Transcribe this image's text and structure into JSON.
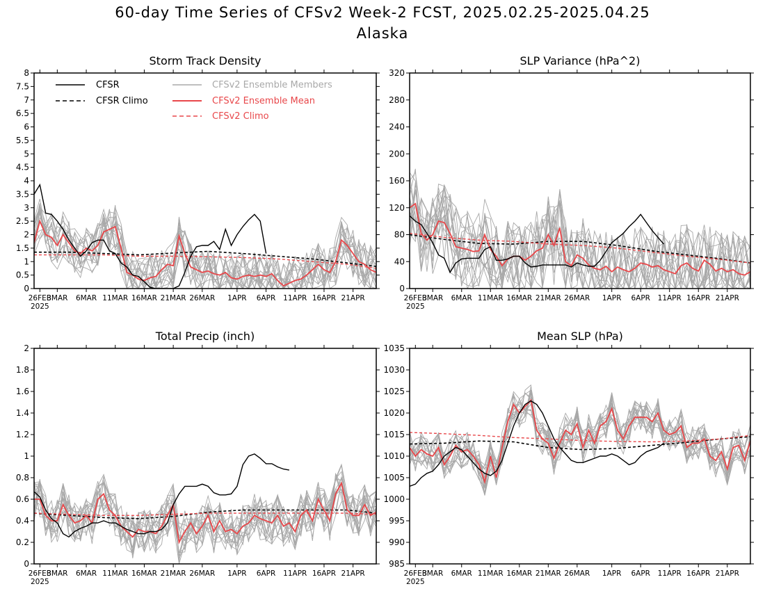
{
  "figure": {
    "title_line1": "60-day Time Series of CFSv2 Week-2 FCST, 2025.02.25-2025.04.25",
    "title_line2": "Alaska"
  },
  "legend": {
    "cfsr": "CFSR",
    "cfsr_climo": "CFSR Climo",
    "members": "CFSv2 Ensemble Members",
    "mean": "CFSv2 Ensemble Mean",
    "cfsv2_climo": "CFSv2 Climo"
  },
  "colors": {
    "cfsr": "#000000",
    "members": "#a8a8a8",
    "mean": "#e8474a",
    "climo_red": "#e8474a"
  },
  "x_axis": {
    "tick_labels": [
      "26FEB",
      "3MAR",
      "6MAR",
      "11MAR",
      "16MAR",
      "21MAR",
      "26MAR",
      "1APR",
      "6APR",
      "11APR",
      "16APR",
      "21APR"
    ],
    "tick_day_index": [
      1,
      4,
      9,
      14,
      19,
      24,
      29,
      35,
      40,
      45,
      50,
      55
    ],
    "year_label": "2025",
    "range_days": [
      0,
      59
    ]
  },
  "chart_data": [
    {
      "type": "line",
      "title": "Storm Track Density",
      "ylim": [
        0,
        8
      ],
      "ytick_labels": [
        "0",
        "0.5",
        "1",
        "1.5",
        "2",
        "2.5",
        "3",
        "3.5",
        "4",
        "4.5",
        "5",
        "5.5",
        "6",
        "6.5",
        "7",
        "7.5",
        "8"
      ],
      "legend_placement": "top-left",
      "cfsr": {
        "x": [
          0,
          1,
          2,
          3,
          4,
          5,
          6,
          7,
          8,
          9,
          10,
          11,
          12,
          13,
          14,
          15,
          16,
          17,
          18,
          19,
          20,
          21,
          22,
          23,
          24,
          25,
          26,
          27,
          28,
          29,
          30,
          31,
          32,
          33,
          34,
          35,
          36,
          37,
          38,
          39,
          40
        ],
        "y": [
          3.5,
          3.85,
          2.8,
          2.75,
          2.5,
          2.2,
          1.8,
          1.5,
          1.2,
          1.4,
          1.7,
          1.8,
          1.8,
          1.4,
          1.3,
          0.95,
          0.8,
          0.5,
          0.45,
          0.25,
          0.05,
          0,
          0,
          0,
          0,
          0.1,
          0.6,
          1.2,
          1.55,
          1.6,
          1.6,
          1.75,
          1.45,
          2.2,
          1.6,
          2.0,
          2.3,
          2.55,
          2.75,
          2.5,
          1.3
        ]
      },
      "cfsr_climo": {
        "x": [
          0,
          6,
          12,
          18,
          24,
          30,
          36,
          42,
          48,
          54,
          59
        ],
        "y": [
          1.35,
          1.35,
          1.3,
          1.25,
          1.32,
          1.38,
          1.3,
          1.2,
          1.1,
          0.95,
          0.82
        ]
      },
      "mean": {
        "x": [
          0,
          1,
          2,
          3,
          4,
          5,
          6,
          7,
          8,
          9,
          10,
          11,
          12,
          13,
          14,
          15,
          16,
          17,
          18,
          19,
          20,
          21,
          22,
          23,
          24,
          25,
          26,
          27,
          28,
          29,
          30,
          31,
          32,
          33,
          34,
          35,
          36,
          37,
          38,
          39,
          40,
          41,
          42,
          43,
          44,
          45,
          46,
          47,
          48,
          49,
          50,
          51,
          52,
          53,
          54,
          55,
          56,
          57,
          58,
          59
        ],
        "y": [
          1.7,
          2.5,
          2.0,
          1.9,
          1.6,
          2.0,
          1.7,
          1.4,
          1.3,
          1.5,
          1.4,
          1.6,
          2.1,
          2.2,
          2.3,
          1.5,
          0.6,
          0.5,
          0.35,
          0.3,
          0.4,
          0.45,
          0.7,
          0.9,
          0.85,
          1.95,
          1.3,
          0.8,
          0.7,
          0.6,
          0.65,
          0.55,
          0.5,
          0.6,
          0.4,
          0.35,
          0.45,
          0.5,
          0.45,
          0.5,
          0.45,
          0.55,
          0.3,
          0.1,
          0.2,
          0.3,
          0.35,
          0.5,
          0.7,
          0.9,
          0.7,
          0.6,
          1.0,
          1.8,
          1.6,
          1.3,
          1.0,
          0.9,
          0.7,
          0.6
        ]
      },
      "cfsv2_climo": {
        "x": [
          0,
          6,
          12,
          18,
          24,
          30,
          36,
          42,
          48,
          54,
          59
        ],
        "y": [
          1.25,
          1.25,
          1.25,
          1.2,
          1.2,
          1.18,
          1.15,
          1.1,
          1.0,
          0.9,
          0.75
        ]
      },
      "members": {
        "count": 16,
        "spread": 0.9
      }
    },
    {
      "type": "line",
      "title": "SLP Variance (hPa^2)",
      "ylim": [
        0,
        320
      ],
      "ytick_labels": [
        "0",
        "40",
        "80",
        "120",
        "160",
        "200",
        "240",
        "280",
        "320"
      ],
      "cfsr": {
        "x": [
          0,
          1,
          2,
          3,
          4,
          5,
          6,
          7,
          8,
          9,
          10,
          11,
          12,
          13,
          14,
          15,
          16,
          17,
          18,
          19,
          20,
          21,
          22,
          23,
          24,
          25,
          26,
          27,
          28,
          29,
          30,
          31,
          32,
          33,
          34,
          35,
          36,
          37,
          38,
          39,
          40,
          41,
          42,
          43,
          44
        ],
        "y": [
          108,
          100,
          95,
          82,
          68,
          50,
          45,
          24,
          38,
          44,
          45,
          45,
          45,
          58,
          62,
          42,
          42,
          44,
          48,
          48,
          38,
          32,
          33,
          35,
          35,
          35,
          35,
          35,
          32,
          38,
          35,
          33,
          33,
          42,
          55,
          68,
          75,
          82,
          92,
          100,
          110,
          98,
          86,
          76,
          66
        ]
      },
      "cfsr_climo": {
        "x": [
          0,
          6,
          12,
          18,
          24,
          30,
          36,
          42,
          48,
          54,
          59
        ],
        "y": [
          80,
          73,
          67,
          66,
          70,
          70,
          64,
          56,
          50,
          44,
          38
        ]
      },
      "mean": {
        "x": [
          0,
          1,
          2,
          3,
          4,
          5,
          6,
          7,
          8,
          9,
          10,
          11,
          12,
          13,
          14,
          15,
          16,
          17,
          18,
          19,
          20,
          21,
          22,
          23,
          24,
          25,
          26,
          27,
          28,
          29,
          30,
          31,
          32,
          33,
          34,
          35,
          36,
          37,
          38,
          39,
          40,
          41,
          42,
          43,
          44,
          45,
          46,
          47,
          48,
          49,
          50,
          51,
          52,
          53,
          54,
          55,
          56,
          57,
          58,
          59
        ],
        "y": [
          120,
          126,
          82,
          72,
          80,
          100,
          98,
          82,
          62,
          60,
          58,
          55,
          56,
          80,
          58,
          48,
          34,
          44,
          48,
          48,
          42,
          48,
          56,
          60,
          80,
          64,
          90,
          40,
          34,
          50,
          45,
          35,
          30,
          28,
          33,
          25,
          32,
          28,
          25,
          30,
          38,
          36,
          32,
          34,
          28,
          25,
          22,
          34,
          38,
          30,
          26,
          42,
          36,
          26,
          30,
          25,
          28,
          22,
          20,
          25
        ]
      },
      "cfsv2_climo": {
        "x": [
          0,
          6,
          12,
          18,
          24,
          30,
          36,
          42,
          48,
          54,
          59
        ],
        "y": [
          82,
          76,
          72,
          70,
          66,
          64,
          60,
          54,
          48,
          43,
          38
        ]
      },
      "members": {
        "count": 16,
        "spread": 60
      }
    },
    {
      "type": "line",
      "title": "Total Precip (inch)",
      "ylim": [
        0,
        2
      ],
      "ytick_labels": [
        "0",
        "0.2",
        "0.4",
        "0.6",
        "0.8",
        "1",
        "1.2",
        "1.4",
        "1.6",
        "1.8",
        "2"
      ],
      "cfsr": {
        "x": [
          0,
          1,
          2,
          3,
          4,
          5,
          6,
          7,
          8,
          9,
          10,
          11,
          12,
          13,
          14,
          15,
          16,
          17,
          18,
          19,
          20,
          21,
          22,
          23,
          24,
          25,
          26,
          27,
          28,
          29,
          30,
          31,
          32,
          33,
          34,
          35,
          36,
          37,
          38,
          39,
          40,
          41,
          42,
          43,
          44
        ],
        "y": [
          0.67,
          0.62,
          0.5,
          0.42,
          0.38,
          0.28,
          0.25,
          0.3,
          0.33,
          0.35,
          0.38,
          0.38,
          0.4,
          0.38,
          0.38,
          0.35,
          0.32,
          0.3,
          0.28,
          0.28,
          0.3,
          0.3,
          0.32,
          0.38,
          0.55,
          0.65,
          0.72,
          0.72,
          0.72,
          0.74,
          0.72,
          0.66,
          0.64,
          0.64,
          0.65,
          0.72,
          0.92,
          1.0,
          1.02,
          0.98,
          0.93,
          0.93,
          0.9,
          0.88,
          0.87
        ]
      },
      "cfsr_climo": {
        "x": [
          0,
          6,
          12,
          18,
          24,
          30,
          36,
          42,
          48,
          54,
          59
        ],
        "y": [
          0.47,
          0.45,
          0.43,
          0.42,
          0.44,
          0.48,
          0.5,
          0.5,
          0.5,
          0.5,
          0.47
        ]
      },
      "mean": {
        "x": [
          0,
          1,
          2,
          3,
          4,
          5,
          6,
          7,
          8,
          9,
          10,
          11,
          12,
          13,
          14,
          15,
          16,
          17,
          18,
          19,
          20,
          21,
          22,
          23,
          24,
          25,
          26,
          27,
          28,
          29,
          30,
          31,
          32,
          33,
          34,
          35,
          36,
          37,
          38,
          39,
          40,
          41,
          42,
          43,
          44,
          45,
          46,
          47,
          48,
          49,
          50,
          51,
          52,
          53,
          54,
          55,
          56,
          57,
          58,
          59
        ],
        "y": [
          0.6,
          0.6,
          0.45,
          0.4,
          0.4,
          0.55,
          0.45,
          0.38,
          0.4,
          0.45,
          0.38,
          0.6,
          0.65,
          0.5,
          0.45,
          0.35,
          0.3,
          0.25,
          0.32,
          0.3,
          0.3,
          0.28,
          0.35,
          0.45,
          0.55,
          0.2,
          0.3,
          0.38,
          0.28,
          0.35,
          0.45,
          0.3,
          0.4,
          0.3,
          0.32,
          0.28,
          0.35,
          0.38,
          0.45,
          0.42,
          0.4,
          0.38,
          0.45,
          0.35,
          0.38,
          0.3,
          0.45,
          0.5,
          0.4,
          0.6,
          0.5,
          0.4,
          0.65,
          0.75,
          0.5,
          0.45,
          0.45,
          0.55,
          0.45,
          0.48
        ]
      },
      "cfsv2_climo": {
        "x": [
          0,
          6,
          12,
          18,
          24,
          30,
          36,
          42,
          48,
          54,
          59
        ],
        "y": [
          0.47,
          0.46,
          0.45,
          0.45,
          0.46,
          0.47,
          0.47,
          0.47,
          0.47,
          0.47,
          0.46
        ]
      },
      "members": {
        "count": 16,
        "spread": 0.2
      }
    },
    {
      "type": "line",
      "title": "Mean SLP (hPa)",
      "ylim": [
        985,
        1035
      ],
      "ytick_labels": [
        "985",
        "990",
        "995",
        "1000",
        "1005",
        "1010",
        "1015",
        "1020",
        "1025",
        "1030",
        "1035"
      ],
      "cfsr": {
        "x": [
          0,
          1,
          2,
          3,
          4,
          5,
          6,
          7,
          8,
          9,
          10,
          11,
          12,
          13,
          14,
          15,
          16,
          17,
          18,
          19,
          20,
          21,
          22,
          23,
          24,
          25,
          26,
          27,
          28,
          29,
          30,
          31,
          32,
          33,
          34,
          35,
          36,
          37,
          38,
          39,
          40,
          41,
          42,
          43,
          44
        ],
        "y": [
          1003,
          1003.5,
          1005,
          1006,
          1006.5,
          1008,
          1010,
          1011,
          1012,
          1011.5,
          1010,
          1008.5,
          1007,
          1006,
          1005.5,
          1006.5,
          1009,
          1013,
          1017,
          1020,
          1022,
          1022.8,
          1022,
          1020,
          1017,
          1014,
          1012,
          1010.5,
          1009,
          1008.5,
          1008.5,
          1009,
          1009.5,
          1010,
          1010,
          1010.5,
          1010,
          1009,
          1008,
          1008.5,
          1010,
          1011,
          1011.5,
          1012,
          1013
        ]
      },
      "cfsr_climo": {
        "x": [
          0,
          6,
          12,
          18,
          24,
          30,
          36,
          42,
          48,
          54,
          59
        ],
        "y": [
          1012.8,
          1013,
          1013.5,
          1013.3,
          1012,
          1011.5,
          1011.8,
          1012.5,
          1013.2,
          1014,
          1014.5
        ]
      },
      "mean": {
        "x": [
          0,
          1,
          2,
          3,
          4,
          5,
          6,
          7,
          8,
          9,
          10,
          11,
          12,
          13,
          14,
          15,
          16,
          17,
          18,
          19,
          20,
          21,
          22,
          23,
          24,
          25,
          26,
          27,
          28,
          29,
          30,
          31,
          32,
          33,
          34,
          35,
          36,
          37,
          38,
          39,
          40,
          41,
          42,
          43,
          44,
          45,
          46,
          47,
          48,
          49,
          50,
          51,
          52,
          53,
          54,
          55,
          56,
          57,
          58,
          59
        ],
        "y": [
          1012,
          1010,
          1011.5,
          1010.5,
          1010,
          1012,
          1008,
          1010,
          1012.5,
          1011,
          1011.5,
          1010,
          1008,
          1004,
          1010,
          1005,
          1012,
          1018,
          1022,
          1020,
          1021.5,
          1023,
          1016,
          1014,
          1013,
          1009.5,
          1013,
          1016,
          1015,
          1017.5,
          1012,
          1016,
          1013,
          1017,
          1018,
          1021,
          1016,
          1014,
          1017,
          1019,
          1019,
          1019,
          1018,
          1020,
          1016,
          1015,
          1015.5,
          1017,
          1012,
          1013,
          1013,
          1014,
          1010,
          1009,
          1011,
          1007,
          1012,
          1012.5,
          1009,
          1013.5
        ]
      },
      "cfsv2_climo": {
        "x": [
          0,
          6,
          12,
          18,
          24,
          30,
          36,
          42,
          48,
          54,
          59
        ],
        "y": [
          1015.5,
          1015.2,
          1014.8,
          1014.3,
          1014,
          1013.6,
          1013.4,
          1013.3,
          1013.5,
          1014,
          1014.8
        ]
      },
      "members": {
        "count": 16,
        "spread": 4
      }
    }
  ]
}
